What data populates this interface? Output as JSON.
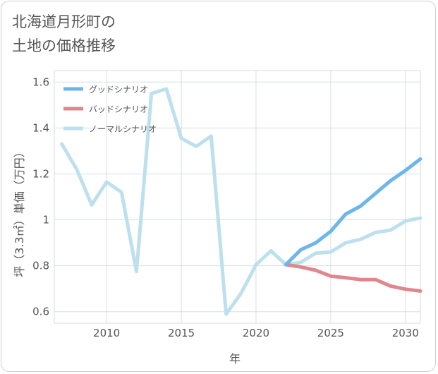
{
  "title_line1": "北海道月形町の",
  "title_line2": "土地の価格推移",
  "chart_data": {
    "type": "line",
    "xlabel": "年",
    "ylabel": "坪（3.3㎡）単価（万円）",
    "xlim": [
      2006.5,
      2031
    ],
    "ylim": [
      0.55,
      1.65
    ],
    "x_ticks": [
      2010,
      2015,
      2020,
      2025,
      2030
    ],
    "x_tick_labels": [
      "2010",
      "2015",
      "2020",
      "2025",
      "2030"
    ],
    "y_ticks": [
      0.6,
      0.8,
      1.0,
      1.2,
      1.4,
      1.6
    ],
    "y_tick_labels": [
      "0.6",
      "0.8",
      "1",
      "1.2",
      "1.4",
      "1.6"
    ],
    "grid": true,
    "legend_position": "top-left",
    "series": [
      {
        "name": "グッドシナリオ",
        "color": "#6cb6ec",
        "x": [
          2022,
          2023,
          2024,
          2025,
          2026,
          2027,
          2028,
          2029,
          2030,
          2031
        ],
        "y": [
          0.805,
          0.87,
          0.9,
          0.95,
          1.025,
          1.06,
          1.115,
          1.17,
          1.215,
          1.265
        ]
      },
      {
        "name": "バッドシナリオ",
        "color": "#e0868c",
        "x": [
          2022,
          2023,
          2024,
          2025,
          2026,
          2027,
          2028,
          2029,
          2030,
          2031
        ],
        "y": [
          0.805,
          0.795,
          0.78,
          0.755,
          0.748,
          0.74,
          0.74,
          0.712,
          0.698,
          0.69
        ]
      },
      {
        "name": "ノーマルシナリオ",
        "color": "#bde0ee",
        "x": [
          2007,
          2008,
          2009,
          2010,
          2011,
          2012,
          2013,
          2014,
          2015,
          2016,
          2017,
          2018,
          2019,
          2020,
          2021,
          2022,
          2023,
          2024,
          2025,
          2026,
          2027,
          2028,
          2029,
          2030,
          2031
        ],
        "y": [
          1.33,
          1.22,
          1.065,
          1.165,
          1.12,
          0.775,
          1.55,
          1.57,
          1.355,
          1.32,
          1.365,
          0.59,
          0.68,
          0.805,
          0.865,
          0.805,
          0.815,
          0.855,
          0.86,
          0.9,
          0.915,
          0.945,
          0.955,
          0.995,
          1.008
        ]
      }
    ]
  }
}
